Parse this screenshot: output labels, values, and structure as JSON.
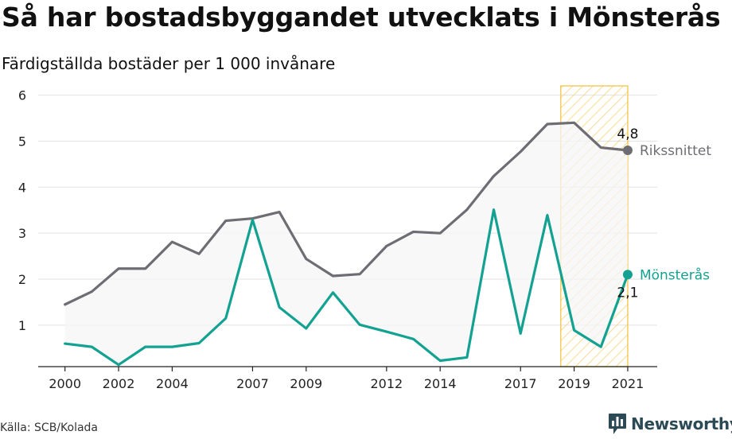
{
  "title": "Så har bostadsbyggandet utvecklats i Mönsterås",
  "subtitle": "Färdigställda bostäder per 1 000 invånare",
  "source": "Källa: SCB/Kolada",
  "brand": "Newsworthy",
  "colors": {
    "riket": "#6e6d73",
    "kommun": "#13a291",
    "highlight": "#f5c243",
    "fill_between": "#f6f6f6",
    "grid": "#e2e2e2",
    "brand": "#2c4a55"
  },
  "chart_data": {
    "type": "line",
    "title": "Så har bostadsbyggandet utvecklats i Mönsterås",
    "ylabel": "Färdigställda bostäder per 1 000 invånare",
    "ylim": [
      0.1,
      6.2
    ],
    "yticks": [
      1,
      2,
      3,
      4,
      5,
      6
    ],
    "xlim": [
      1999.0,
      2022.1
    ],
    "xticks": [
      2000,
      2002,
      2004,
      2007,
      2009,
      2012,
      2014,
      2017,
      2019,
      2021
    ],
    "x": [
      2000,
      2001,
      2002,
      2003,
      2004,
      2005,
      2006,
      2007,
      2008,
      2009,
      2010,
      2011,
      2012,
      2013,
      2014,
      2015,
      2016,
      2017,
      2018,
      2019,
      2020,
      2021
    ],
    "highlight_range": [
      2018.5,
      2021
    ],
    "series": [
      {
        "name": "Rikssnittet",
        "color_key": "riket",
        "values": [
          1.45,
          1.73,
          2.23,
          2.23,
          2.81,
          2.55,
          3.27,
          3.32,
          3.46,
          2.44,
          2.07,
          2.11,
          2.72,
          3.03,
          3.0,
          3.51,
          4.24,
          4.77,
          5.37,
          5.4,
          4.86,
          4.8
        ],
        "end_label": "4,8"
      },
      {
        "name": "Mönsterås",
        "color_key": "kommun",
        "values": [
          0.6,
          0.53,
          0.14,
          0.53,
          0.53,
          0.61,
          1.15,
          3.29,
          1.39,
          0.93,
          1.71,
          1.01,
          0.86,
          0.7,
          0.23,
          0.3,
          3.51,
          0.82,
          3.39,
          0.89,
          0.53,
          2.1
        ],
        "end_label": "2,1"
      }
    ]
  }
}
